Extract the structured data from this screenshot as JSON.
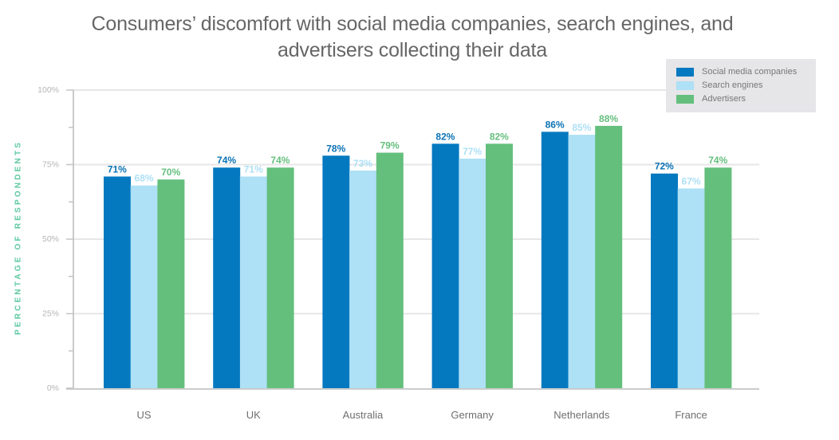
{
  "chart_data": {
    "type": "bar",
    "title": "Consumers’ discomfort with social media companies, search engines, and advertisers collecting their data",
    "title_lines": [
      "Consumers’ discomfort with social media companies, search engines, and",
      "advertisers collecting their data"
    ],
    "xlabel": "",
    "ylabel": "PERCENTAGE OF RESPONDENTS",
    "ylim": [
      0,
      100
    ],
    "yticks": [
      0,
      25,
      50,
      75,
      100
    ],
    "ytick_labels": [
      "0%",
      "25%",
      "50%",
      "75%",
      "100%"
    ],
    "minor_ytick_step": 12.5,
    "grid": true,
    "legend_position": "top-right",
    "categories": [
      "US",
      "UK",
      "Australia",
      "Germany",
      "Netherlands",
      "France"
    ],
    "series": [
      {
        "name": "Social media companies",
        "color": "#0479c0",
        "label_color": "#0b72b5",
        "values": [
          71,
          74,
          78,
          82,
          86,
          72
        ]
      },
      {
        "name": "Search engines",
        "color": "#aee0f6",
        "label_color": "#aee0f6",
        "values": [
          68,
          71,
          73,
          77,
          85,
          67
        ]
      },
      {
        "name": "Advertisers",
        "color": "#64bf7d",
        "label_color": "#64bf7d",
        "values": [
          70,
          74,
          79,
          82,
          88,
          74
        ]
      }
    ],
    "value_suffix": "%"
  }
}
